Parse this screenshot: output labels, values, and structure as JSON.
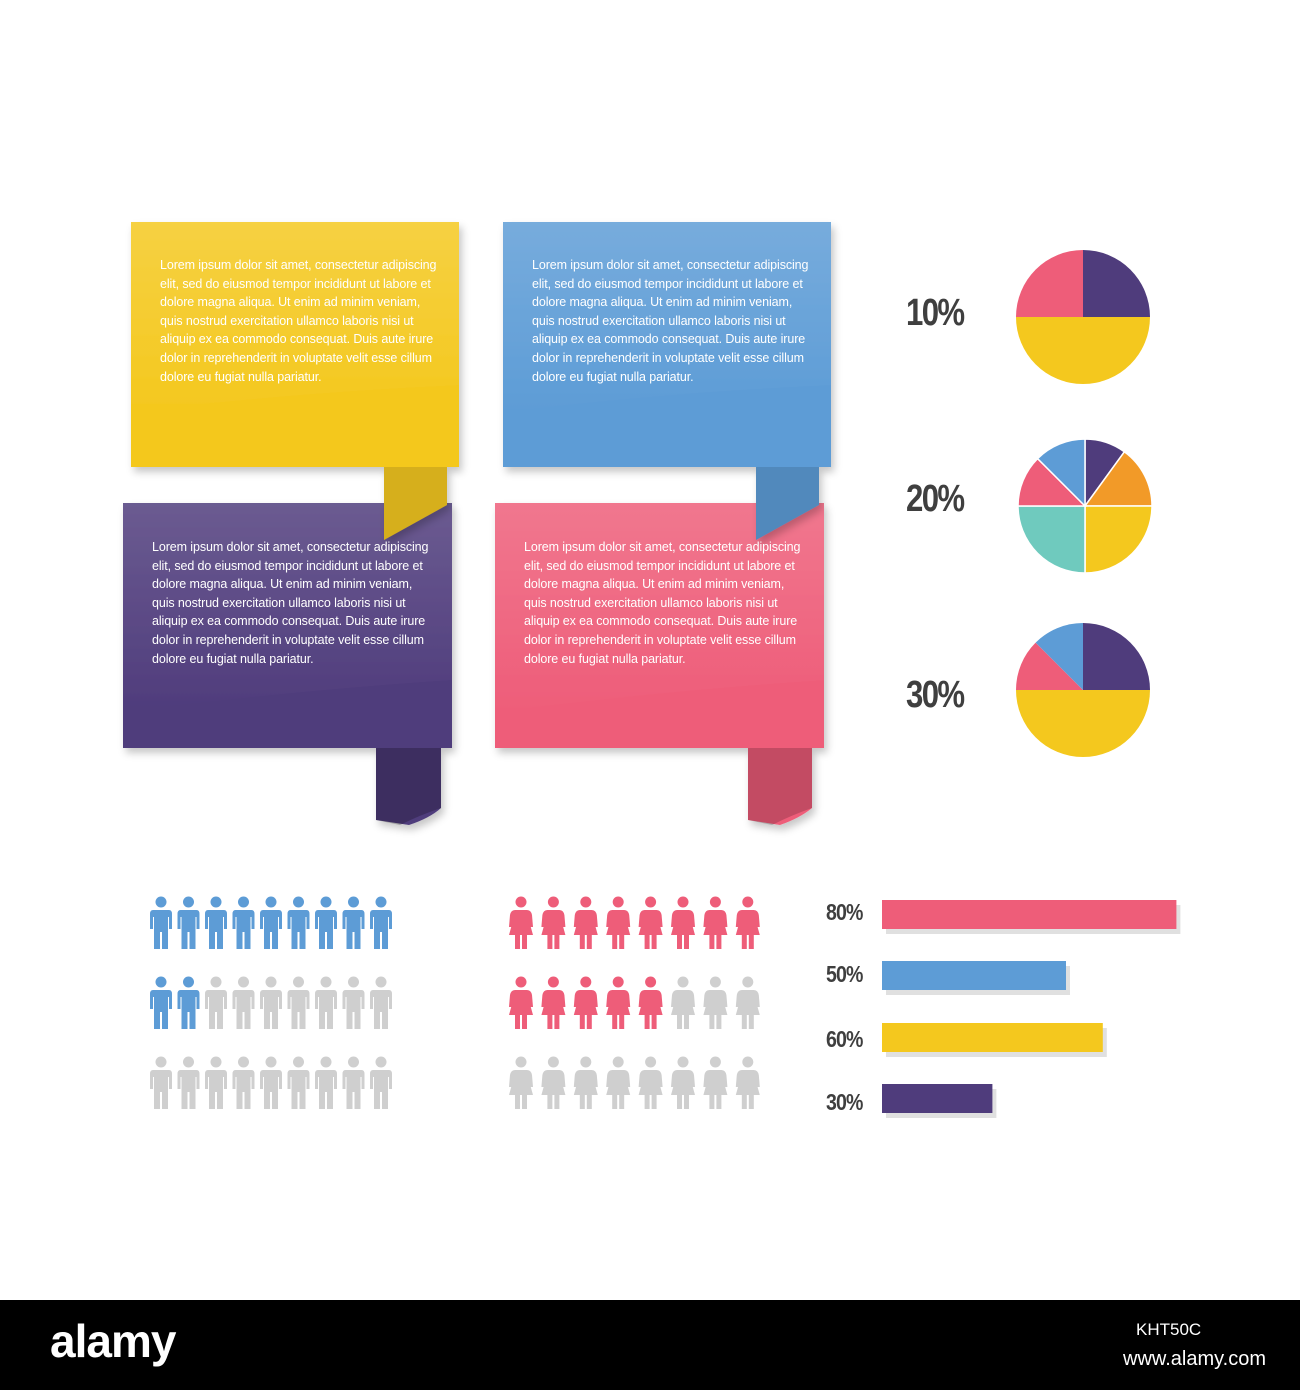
{
  "colors": {
    "yellow": "#f4c81e",
    "blue": "#5d9cd6",
    "purple": "#4f3c7c",
    "pink": "#ee5d79",
    "orange": "#f29a28",
    "teal": "#6fcabe",
    "grey": "#cfcfcf",
    "label": "#3f3f3f"
  },
  "bubbles": [
    {
      "color": "yellow",
      "text": "Lorem ipsum dolor sit amet, consectetur adipiscing elit, sed do eiusmod tempor incididunt ut labore et dolore magna aliqua. Ut enim ad minim veniam, quis nostrud exercitation ullamco laboris nisi ut aliquip ex ea commodo consequat. Duis aute irure dolor in reprehenderit in voluptate velit esse cillum dolore eu fugiat nulla pariatur."
    },
    {
      "color": "blue",
      "text": "Lorem ipsum dolor sit amet, consectetur adipiscing elit, sed do eiusmod tempor incididunt ut labore et dolore magna aliqua. Ut enim ad minim veniam, quis nostrud exercitation ullamco laboris nisi ut aliquip ex ea commodo consequat. Duis aute irure dolor in reprehenderit in voluptate velit esse cillum dolore eu fugiat nulla pariatur."
    },
    {
      "color": "purple",
      "text": "Lorem ipsum dolor sit amet, consectetur adipiscing elit, sed do eiusmod tempor incididunt ut labore et dolore magna aliqua. Ut enim ad minim veniam, quis nostrud exercitation ullamco laboris nisi ut aliquip ex ea commodo consequat. Duis aute irure dolor in reprehenderit in voluptate velit esse cillum dolore eu fugiat nulla pariatur."
    },
    {
      "color": "pink",
      "text": "Lorem ipsum dolor sit amet, consectetur adipiscing elit, sed do eiusmod tempor incididunt ut labore et dolore magna aliqua. Ut enim ad minim veniam, quis nostrud exercitation ullamco laboris nisi ut aliquip ex ea commodo consequat. Duis aute irure dolor in reprehenderit in voluptate velit esse cillum dolore eu fugiat nulla pariatur."
    }
  ],
  "chart_data": [
    {
      "type": "pie",
      "label": "10%",
      "slices": [
        {
          "color": "purple",
          "value": 25
        },
        {
          "color": "yellow",
          "value": 50
        },
        {
          "color": "pink",
          "value": 25
        }
      ]
    },
    {
      "type": "pie",
      "label": "20%",
      "slices": [
        {
          "color": "purple",
          "value": 10
        },
        {
          "color": "orange",
          "value": 15
        },
        {
          "color": "yellow",
          "value": 25
        },
        {
          "color": "teal",
          "value": 25
        },
        {
          "color": "pink",
          "value": 12.5
        },
        {
          "color": "blue",
          "value": 12.5
        }
      ]
    },
    {
      "type": "pie",
      "label": "30%",
      "slices": [
        {
          "color": "purple",
          "value": 25
        },
        {
          "color": "yellow",
          "value": 50
        },
        {
          "color": "pink",
          "value": 12.5
        },
        {
          "color": "blue",
          "value": 12.5
        }
      ]
    },
    {
      "type": "bar",
      "orientation": "horizontal",
      "categories": [
        "80%",
        "50%",
        "60%",
        "30%"
      ],
      "values": [
        80,
        50,
        60,
        30
      ],
      "colors": [
        "pink",
        "blue",
        "yellow",
        "purple"
      ],
      "xlim": [
        0,
        100
      ]
    },
    {
      "type": "pictograph",
      "icon": "man-icon",
      "total": 27,
      "highlighted": 11,
      "color": "blue"
    },
    {
      "type": "pictograph",
      "icon": "woman-icon",
      "total": 24,
      "highlighted": 13,
      "color": "pink"
    }
  ],
  "footer": {
    "brand": "alamy",
    "image_id": "KHT50C",
    "url": "www.alamy.com"
  }
}
